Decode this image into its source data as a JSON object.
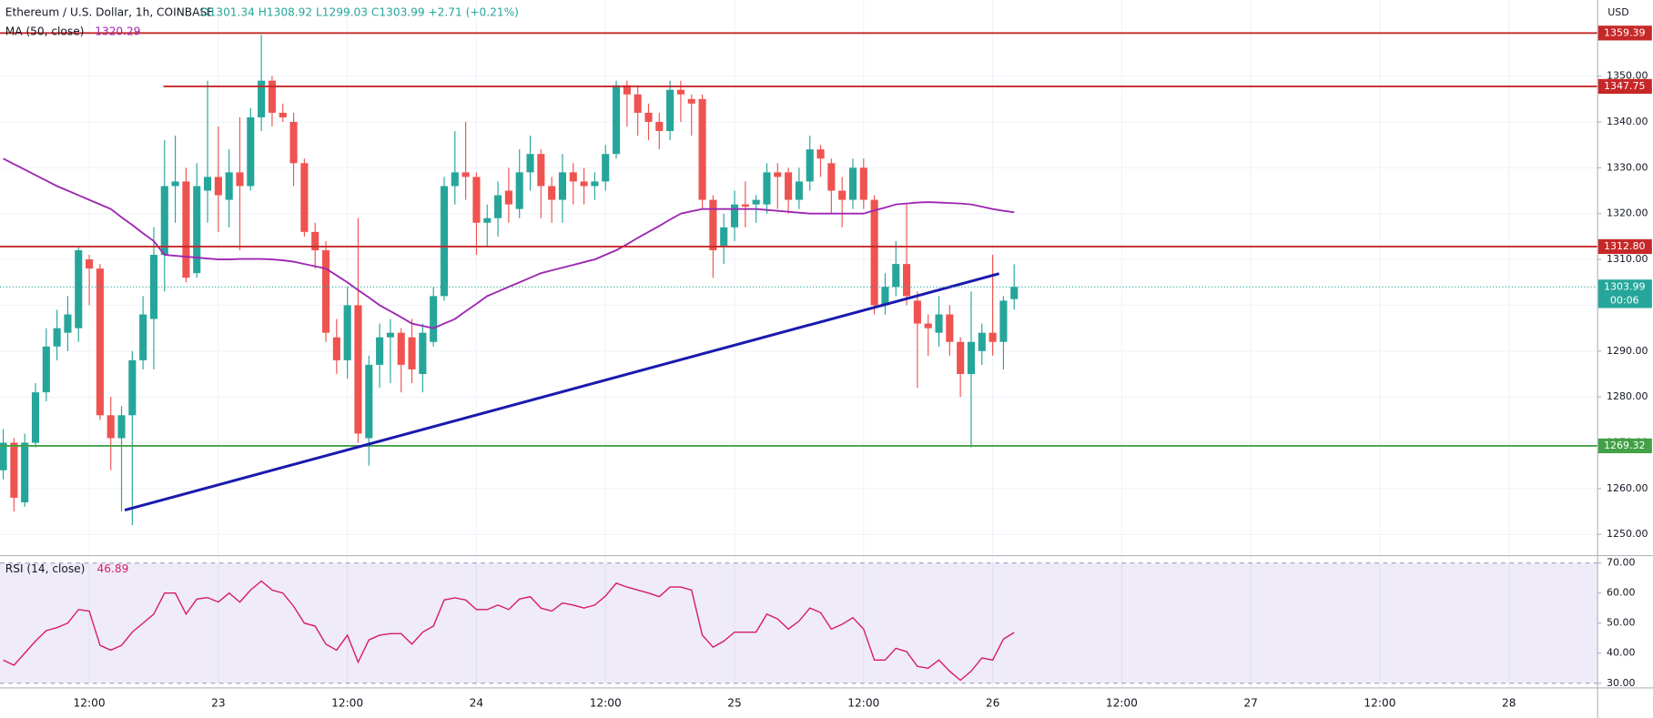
{
  "chart_data": [
    {
      "type": "candlestick",
      "symbol": "Ethereum / U.S. Dollar, 1h, COINBASE",
      "ohlc_text": "O1301.34 H1308.92 L1299.03 C1303.99 +2.71 (+0.21%)",
      "currency": "USD",
      "countdown": "00:06",
      "up_color": "#26a69a",
      "down_color": "#ef5350",
      "xlim": [
        -0.3,
        148.2
      ],
      "xticks": [
        {
          "value": 8,
          "label": "12:00"
        },
        {
          "value": 20,
          "label": "23"
        },
        {
          "value": 32,
          "label": "12:00"
        },
        {
          "value": 44,
          "label": "24"
        },
        {
          "value": 56,
          "label": "12:00"
        },
        {
          "value": 68,
          "label": "25"
        },
        {
          "value": 80,
          "label": "12:00"
        },
        {
          "value": 92,
          "label": "26"
        },
        {
          "value": 104,
          "label": "12:00"
        },
        {
          "value": 116,
          "label": "27"
        },
        {
          "value": 128,
          "label": "12:00"
        },
        {
          "value": 140,
          "label": "28"
        }
      ],
      "ylim": [
        1245.6,
        1366.6
      ],
      "yticks": [
        {
          "value": 1250,
          "label": "1250.00"
        },
        {
          "value": 1260,
          "label": "1260.00"
        },
        {
          "value": 1270,
          "label": "1270.00"
        },
        {
          "value": 1280,
          "label": "1280.00"
        },
        {
          "value": 1290,
          "label": "1290.00"
        },
        {
          "value": 1300,
          "label": "1300.00"
        },
        {
          "value": 1310,
          "label": "1310.00"
        },
        {
          "value": 1320,
          "label": "1320.00"
        },
        {
          "value": 1330,
          "label": "1330.00"
        },
        {
          "value": 1340,
          "label": "1340.00"
        },
        {
          "value": 1350,
          "label": "1350.00"
        }
      ],
      "grid": true,
      "open": [
        1264,
        1270,
        1257,
        1270,
        1281,
        1291,
        1294,
        1295,
        1310,
        1308,
        1276,
        1271,
        1276,
        1288,
        1297,
        1311,
        1326,
        1327,
        1307,
        1325,
        1328,
        1323,
        1329,
        1326,
        1341,
        1349,
        1342,
        1340,
        1331,
        1316,
        1312,
        1293,
        1288,
        1300,
        1271,
        1287,
        1293,
        1294,
        1293,
        1285,
        1292,
        1302,
        1326,
        1329,
        1328,
        1318,
        1319,
        1325,
        1321,
        1329,
        1333,
        1326,
        1323,
        1329,
        1327,
        1326,
        1327,
        1333,
        1348,
        1346,
        1342,
        1340,
        1338,
        1347,
        1345,
        1345,
        1323,
        1313,
        1317,
        1322,
        1322,
        1322,
        1329,
        1329,
        1323,
        1327,
        1334,
        1331,
        1325,
        1323,
        1330,
        1323,
        1300,
        1304,
        1309,
        1301,
        1296,
        1294,
        1298,
        1292,
        1285,
        1290,
        1294,
        1292,
        1301.34
      ],
      "high": [
        1273,
        1271,
        1272,
        1283,
        1295,
        1299,
        1302,
        1313,
        1311,
        1309,
        1280,
        1278,
        1290,
        1302,
        1317,
        1336,
        1337,
        1330,
        1331,
        1349,
        1339,
        1334,
        1341,
        1343,
        1359,
        1350,
        1344,
        1342,
        1332,
        1318,
        1314,
        1297,
        1304,
        1319,
        1289,
        1296,
        1297,
        1295,
        1297,
        1296,
        1304,
        1328,
        1338,
        1340,
        1329,
        1322,
        1327,
        1330,
        1334,
        1337,
        1334,
        1328,
        1333,
        1331,
        1330,
        1329,
        1335,
        1349,
        1349,
        1348,
        1344,
        1342,
        1349,
        1349,
        1346,
        1346,
        1324,
        1320,
        1325,
        1327,
        1324,
        1331,
        1331,
        1330,
        1330,
        1337,
        1335,
        1332,
        1328,
        1332,
        1332,
        1324,
        1307,
        1314,
        1322,
        1303,
        1298,
        1302,
        1300,
        1293,
        1303,
        1296,
        1311,
        1302,
        1308.92
      ],
      "low": [
        1262,
        1255,
        1256,
        1269,
        1279,
        1288,
        1290,
        1292,
        1300,
        1275,
        1264,
        1255,
        1252,
        1286,
        1286,
        1303,
        1318,
        1305,
        1306,
        1318,
        1316,
        1317,
        1312,
        1325,
        1338,
        1339,
        1340,
        1326,
        1315,
        1308,
        1292,
        1285,
        1284,
        1270,
        1265,
        1282,
        1283,
        1281,
        1283,
        1281,
        1291,
        1301,
        1322,
        1323,
        1311,
        1313,
        1315,
        1318,
        1319,
        1325,
        1319,
        1318,
        1318,
        1322,
        1322,
        1323,
        1325,
        1332,
        1339,
        1337,
        1336,
        1334,
        1336,
        1340,
        1337,
        1321,
        1306,
        1309,
        1314,
        1317,
        1318,
        1320,
        1321,
        1320,
        1321,
        1325,
        1328,
        1320,
        1317,
        1321,
        1321,
        1298,
        1298,
        1302,
        1300,
        1282,
        1289,
        1291,
        1289,
        1280,
        1269,
        1287,
        1289,
        1286,
        1299.03
      ],
      "close": [
        1270,
        1258,
        1270,
        1281,
        1291,
        1295,
        1298,
        1312,
        1308,
        1276,
        1271,
        1276,
        1288,
        1298,
        1311,
        1326,
        1327,
        1306,
        1326,
        1328,
        1324,
        1329,
        1326,
        1341,
        1349,
        1342,
        1341,
        1331,
        1316,
        1312,
        1294,
        1288,
        1300,
        1272,
        1287,
        1293,
        1294,
        1287,
        1286,
        1294,
        1302,
        1326,
        1329,
        1328,
        1318,
        1319,
        1324,
        1322,
        1329,
        1333,
        1326,
        1323,
        1329,
        1327,
        1326,
        1327,
        1333,
        1348,
        1346,
        1342,
        1340,
        1338,
        1347,
        1346,
        1344,
        1323,
        1312,
        1317,
        1322,
        1321.5,
        1323,
        1329,
        1328,
        1323,
        1327,
        1334,
        1332,
        1325,
        1323,
        1330,
        1323,
        1300,
        1304,
        1309,
        1302,
        1296,
        1295,
        1298,
        1292,
        1285,
        1292,
        1294,
        1292,
        1301,
        1303.99
      ],
      "ma": {
        "name": "MA (50, close)",
        "color": "#9c27b0",
        "values": [
          1332,
          1330.8,
          1329.6,
          1328.4,
          1327.2,
          1326,
          1325,
          1324,
          1323,
          1322,
          1321,
          1319.2,
          1317.5,
          1315.7,
          1314,
          1311,
          1310.8,
          1310.6,
          1310.4,
          1310.2,
          1310,
          1310,
          1310.1,
          1310.1,
          1310.1,
          1310,
          1309.8,
          1309.5,
          1309,
          1308.5,
          1308,
          1306.5,
          1305,
          1303.3,
          1301.7,
          1300,
          1298.7,
          1297.4,
          1296,
          1295.5,
          1295,
          1296,
          1297,
          1298.7,
          1300.3,
          1302,
          1303,
          1304,
          1305,
          1306,
          1307,
          1307.6,
          1308.2,
          1308.8,
          1309.4,
          1310,
          1311,
          1312,
          1313.3,
          1314.7,
          1316,
          1317.3,
          1318.7,
          1320,
          1320.5,
          1321,
          1321,
          1321,
          1321,
          1321,
          1321,
          1320.8,
          1320.6,
          1320.4,
          1320.2,
          1320,
          1320,
          1320,
          1320,
          1320,
          1320,
          1320.7,
          1321.3,
          1322,
          1322.2,
          1322.4,
          1322.5,
          1322.4,
          1322.3,
          1322.2,
          1322,
          1321.5,
          1321,
          1320.6,
          1320.29
        ]
      },
      "levels": [
        {
          "value": 1359.39,
          "label": "1359.39",
          "color": "#c62828"
        },
        {
          "value": 1347.75,
          "label": "1347.75",
          "color": "#c62828",
          "x_start": 14.9
        },
        {
          "value": 1312.8,
          "label": "1312.80",
          "color": "#c62828"
        },
        {
          "value": 1269.32,
          "label": "1269.32",
          "color": "#43a047"
        }
      ],
      "trendline": {
        "color": "#1a1aad",
        "x": [
          11.3,
          92.6
        ],
        "values": [
          1255.3,
          1306.9
        ]
      }
    },
    {
      "type": "line",
      "name": "RSI (14, close)",
      "color": "#d81b60",
      "band": [
        30,
        70
      ],
      "band_color": "#7e57c2",
      "ylim": [
        28.6,
        72.1
      ],
      "yticks": [
        {
          "value": 30,
          "label": "30.00"
        },
        {
          "value": 40,
          "label": "40.00"
        },
        {
          "value": 50,
          "label": "50.00"
        },
        {
          "value": 60,
          "label": "60.00"
        },
        {
          "value": 70,
          "label": "70.00"
        }
      ],
      "values": [
        37.7,
        36,
        40,
        44,
        47.5,
        48.5,
        50,
        54.5,
        54,
        42.6,
        41,
        42.6,
        47,
        50,
        53,
        60,
        60,
        53,
        58,
        58.5,
        57,
        60,
        57,
        61,
        64,
        61,
        60,
        55.6,
        50,
        49,
        43,
        41,
        46,
        37,
        44.4,
        46,
        46.5,
        46.5,
        43,
        47,
        49,
        57.7,
        58.4,
        57.7,
        54.5,
        54.5,
        56,
        54.5,
        58,
        58.8,
        55,
        54,
        56.7,
        56,
        55,
        56,
        59,
        63.3,
        62,
        61,
        60,
        58.8,
        62,
        62,
        61,
        46,
        42,
        44,
        47,
        47,
        47,
        53,
        51.4,
        48,
        50.7,
        55,
        53.5,
        48,
        49.6,
        51.8,
        48,
        37.7,
        37.7,
        41.6,
        40.5,
        35.6,
        35,
        37.7,
        34,
        31,
        34,
        38.4,
        37.7,
        44.7,
        46.89
      ]
    }
  ]
}
